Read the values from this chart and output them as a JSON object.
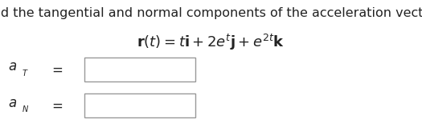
{
  "title": "Find the tangential and normal components of the acceleration vector.",
  "title_fontsize": 11.5,
  "title_color": "#222222",
  "formula_str": "$\\mathbf{r}(t) = t\\mathbf{i} + 2e^{t}\\mathbf{j} + e^{2t}\\mathbf{k}$",
  "formula_fontsize": 13,
  "formula_color": "#222222",
  "background_color": "#ffffff",
  "box_edgecolor": "#999999",
  "box_facecolor": "#ffffff",
  "label_color": "#222222",
  "label_fontsize": 12,
  "sub_fontsize": 10,
  "equals_fontsize": 12
}
